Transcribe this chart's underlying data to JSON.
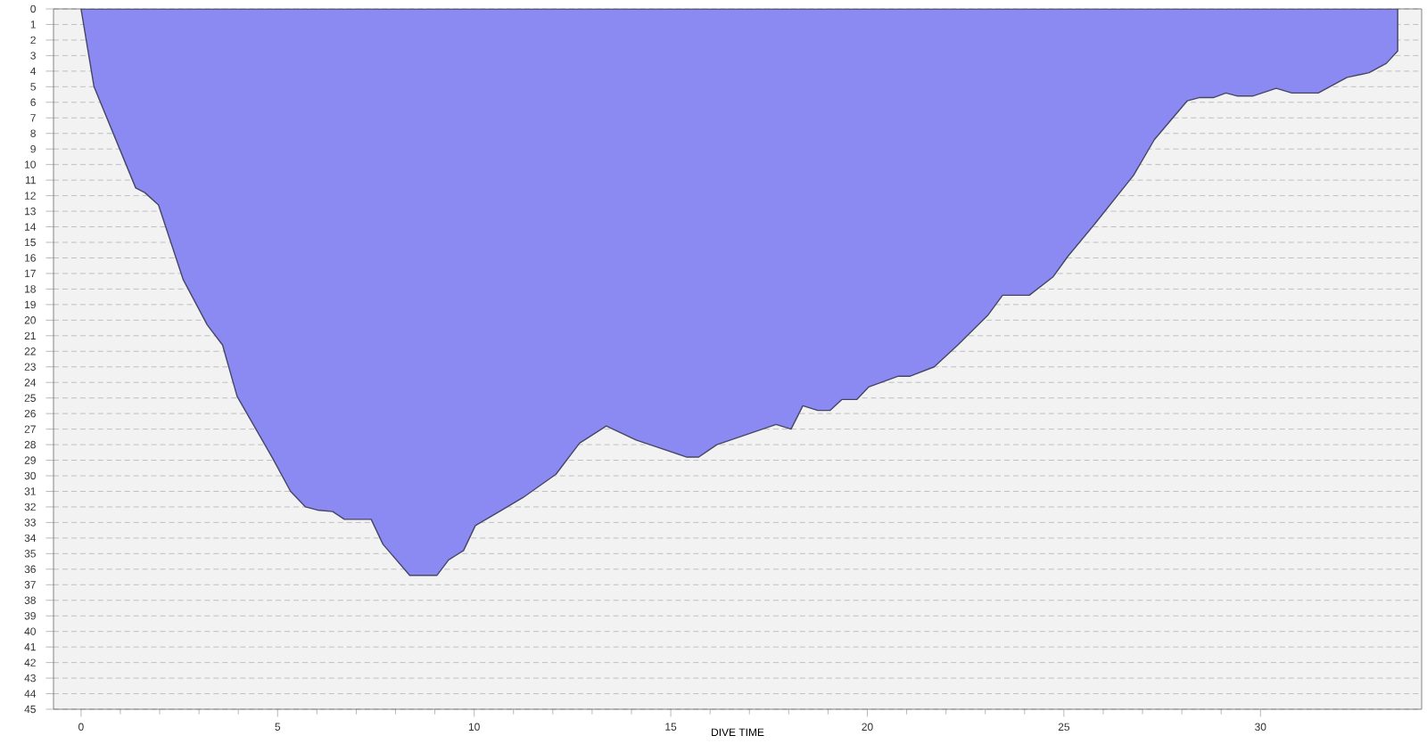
{
  "chart_data": {
    "type": "area",
    "xlabel": "DIVE TIME",
    "color": "#8a8af2",
    "grid": "y",
    "x": [
      0,
      0.33,
      1.39,
      1.62,
      1.97,
      2.6,
      3.21,
      3.6,
      3.97,
      4.88,
      5.33,
      5.71,
      6.01,
      6.4,
      6.7,
      7.38,
      7.68,
      8.36,
      9.05,
      9.35,
      9.73,
      10.03,
      10.64,
      11.24,
      12.08,
      12.68,
      13.36,
      14.12,
      15.41,
      15.71,
      16.17,
      17.68,
      18.06,
      18.36,
      18.74,
      19.05,
      19.35,
      19.73,
      20.03,
      20.79,
      21.09,
      21.7,
      22.3,
      23.06,
      23.44,
      24.12,
      24.73,
      25.1,
      25.79,
      26.77,
      27.3,
      28.14,
      28.44,
      28.8,
      29.12,
      29.42,
      29.8,
      30.4,
      30.8,
      31.47,
      32.2,
      32.76,
      33.2,
      33.49,
      33.49
    ],
    "values": [
      0,
      5,
      11.5,
      11.8,
      12.6,
      17.4,
      20.3,
      21.6,
      24.9,
      28.9,
      31,
      32,
      32.2,
      32.3,
      32.8,
      32.8,
      34.4,
      36.4,
      36.4,
      35.4,
      34.8,
      33.2,
      32.3,
      31.4,
      29.9,
      27.9,
      26.8,
      27.7,
      28.8,
      28.8,
      28,
      26.7,
      27,
      25.5,
      25.8,
      25.8,
      25.1,
      25.1,
      24.3,
      23.6,
      23.6,
      23,
      21.6,
      19.7,
      18.4,
      18.4,
      17.2,
      15.9,
      13.8,
      10.7,
      8.4,
      5.9,
      5.7,
      5.7,
      5.4,
      5.6,
      5.6,
      5.1,
      5.4,
      5.4,
      4.4,
      4.1,
      3.5,
      2.7,
      0
    ],
    "xlim": [
      -0.7,
      34.1
    ],
    "ylim": [
      45,
      0
    ],
    "xticks": [
      0,
      5,
      10,
      15,
      20,
      25,
      30
    ],
    "yticks": [
      0,
      1,
      2,
      3,
      4,
      5,
      6,
      7,
      8,
      9,
      10,
      11,
      12,
      13,
      14,
      15,
      16,
      17,
      18,
      19,
      20,
      21,
      22,
      23,
      24,
      25,
      26,
      27,
      28,
      29,
      30,
      31,
      32,
      33,
      34,
      35,
      36,
      37,
      38,
      39,
      40,
      41,
      42,
      43,
      44,
      45
    ]
  }
}
